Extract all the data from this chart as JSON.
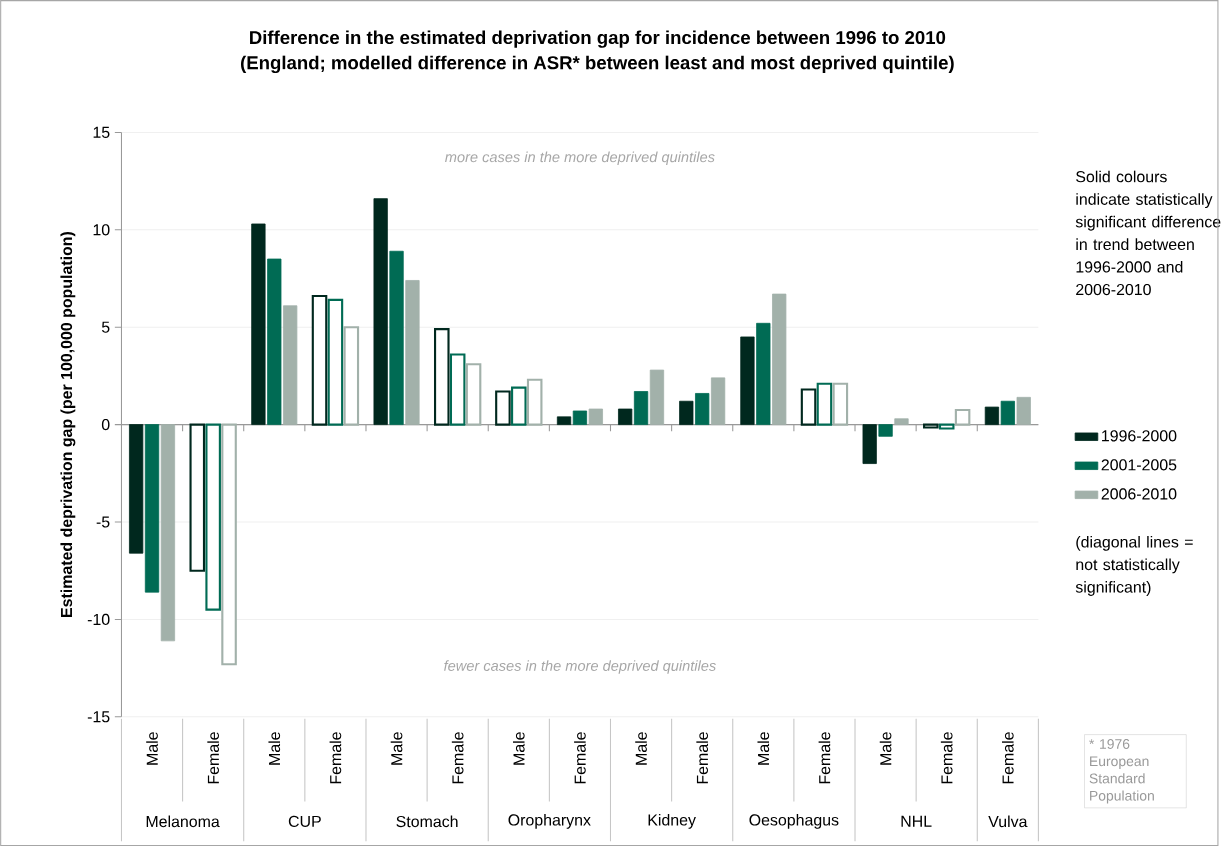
{
  "chart_data": {
    "type": "bar",
    "title": "Difference in the estimated deprivation gap for incidence between 1996 to 2010",
    "subtitle": "(England; modelled difference in ASR* between least and most deprived quintile)",
    "ylabel": "Estimated deprivation gap (per 100,000 population)",
    "categories": [
      "Male",
      "Female",
      "Male",
      "Female",
      "Male",
      "Female",
      "Male",
      "Female",
      "Male",
      "Female",
      "Male",
      "Female",
      "Male",
      "Female",
      "Female"
    ],
    "series": [
      {
        "name": "1996-2000",
        "color": "#00281e",
        "values": [
          -6.6,
          null,
          10.3,
          null,
          11.6,
          null,
          null,
          0.4,
          0.8,
          1.2,
          4.5,
          null,
          -2.0,
          null,
          0.9
        ]
      },
      {
        "name": "2001-2005",
        "color": "#006b54",
        "values": [
          -8.6,
          null,
          8.5,
          null,
          8.9,
          null,
          null,
          0.7,
          1.7,
          1.6,
          5.2,
          null,
          -0.6,
          null,
          1.2
        ]
      },
      {
        "name": "2006-2010",
        "color": "#a2b1aa",
        "values": [
          -11.1,
          null,
          6.1,
          null,
          7.4,
          null,
          null,
          0.8,
          2.8,
          2.4,
          6.7,
          null,
          0.3,
          null,
          1.4
        ]
      },
      {
        "color": "#00281e",
        "values": [
          null,
          -7.5,
          null,
          6.6,
          null,
          4.9,
          1.7,
          null,
          null,
          null,
          null,
          1.8,
          null,
          -0.15,
          null
        ]
      },
      {
        "color": "#006b54",
        "values": [
          null,
          -9.5,
          null,
          6.4,
          null,
          3.6,
          1.9,
          null,
          null,
          null,
          null,
          2.1,
          null,
          -0.2,
          null
        ]
      },
      {
        "color": "#a2b1aa",
        "values": [
          null,
          -12.3,
          null,
          5.0,
          null,
          3.1,
          2.3,
          null,
          null,
          null,
          null,
          2.1,
          null,
          0.75,
          null
        ]
      }
    ],
    "ylim": [
      -15,
      15
    ],
    "yticks": [
      -15,
      -10,
      -5,
      0,
      5,
      10,
      15
    ],
    "grid": "y",
    "legend": "right",
    "annotations": [
      "more cases in the more deprived quintiles",
      "fewer cases in the more deprived quintiles",
      "Solid colours indicate statistically significant difference in trend between 1996-2000 and 2006-2010",
      "(diagonal lines = not statistically significant)",
      "* 1976 European Standard Population",
      "Melanoma",
      "CUP",
      "Stomach",
      "Oropharynx",
      "Kidney",
      "Oesophagus",
      "NHL",
      "Vulva"
    ]
  }
}
